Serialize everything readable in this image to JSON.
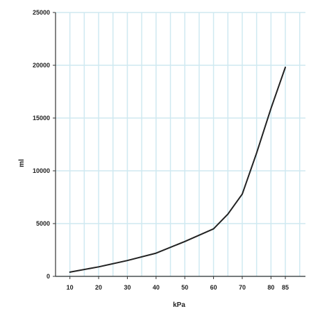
{
  "chart_data": {
    "type": "line",
    "title": "",
    "xlabel": "kPa",
    "ylabel": "ml",
    "xlim": [
      5,
      92
    ],
    "ylim": [
      0,
      25000
    ],
    "grid": true,
    "legend": "none",
    "x_ticks": [
      10,
      20,
      30,
      40,
      50,
      60,
      70,
      80,
      85
    ],
    "y_ticks": [
      0,
      5000,
      10000,
      15000,
      20000,
      25000
    ],
    "series": [
      {
        "x": [
          10,
          20,
          30,
          40,
          50,
          60,
          65,
          70,
          75,
          80,
          85
        ],
        "y": [
          400,
          900,
          1500,
          2200,
          3300,
          4500,
          5900,
          7800,
          11700,
          15900,
          19800
        ],
        "color": "#222222"
      }
    ],
    "colors": {
      "grid": "#cfe9f1",
      "axis": "#333333",
      "line": "#222222"
    }
  }
}
